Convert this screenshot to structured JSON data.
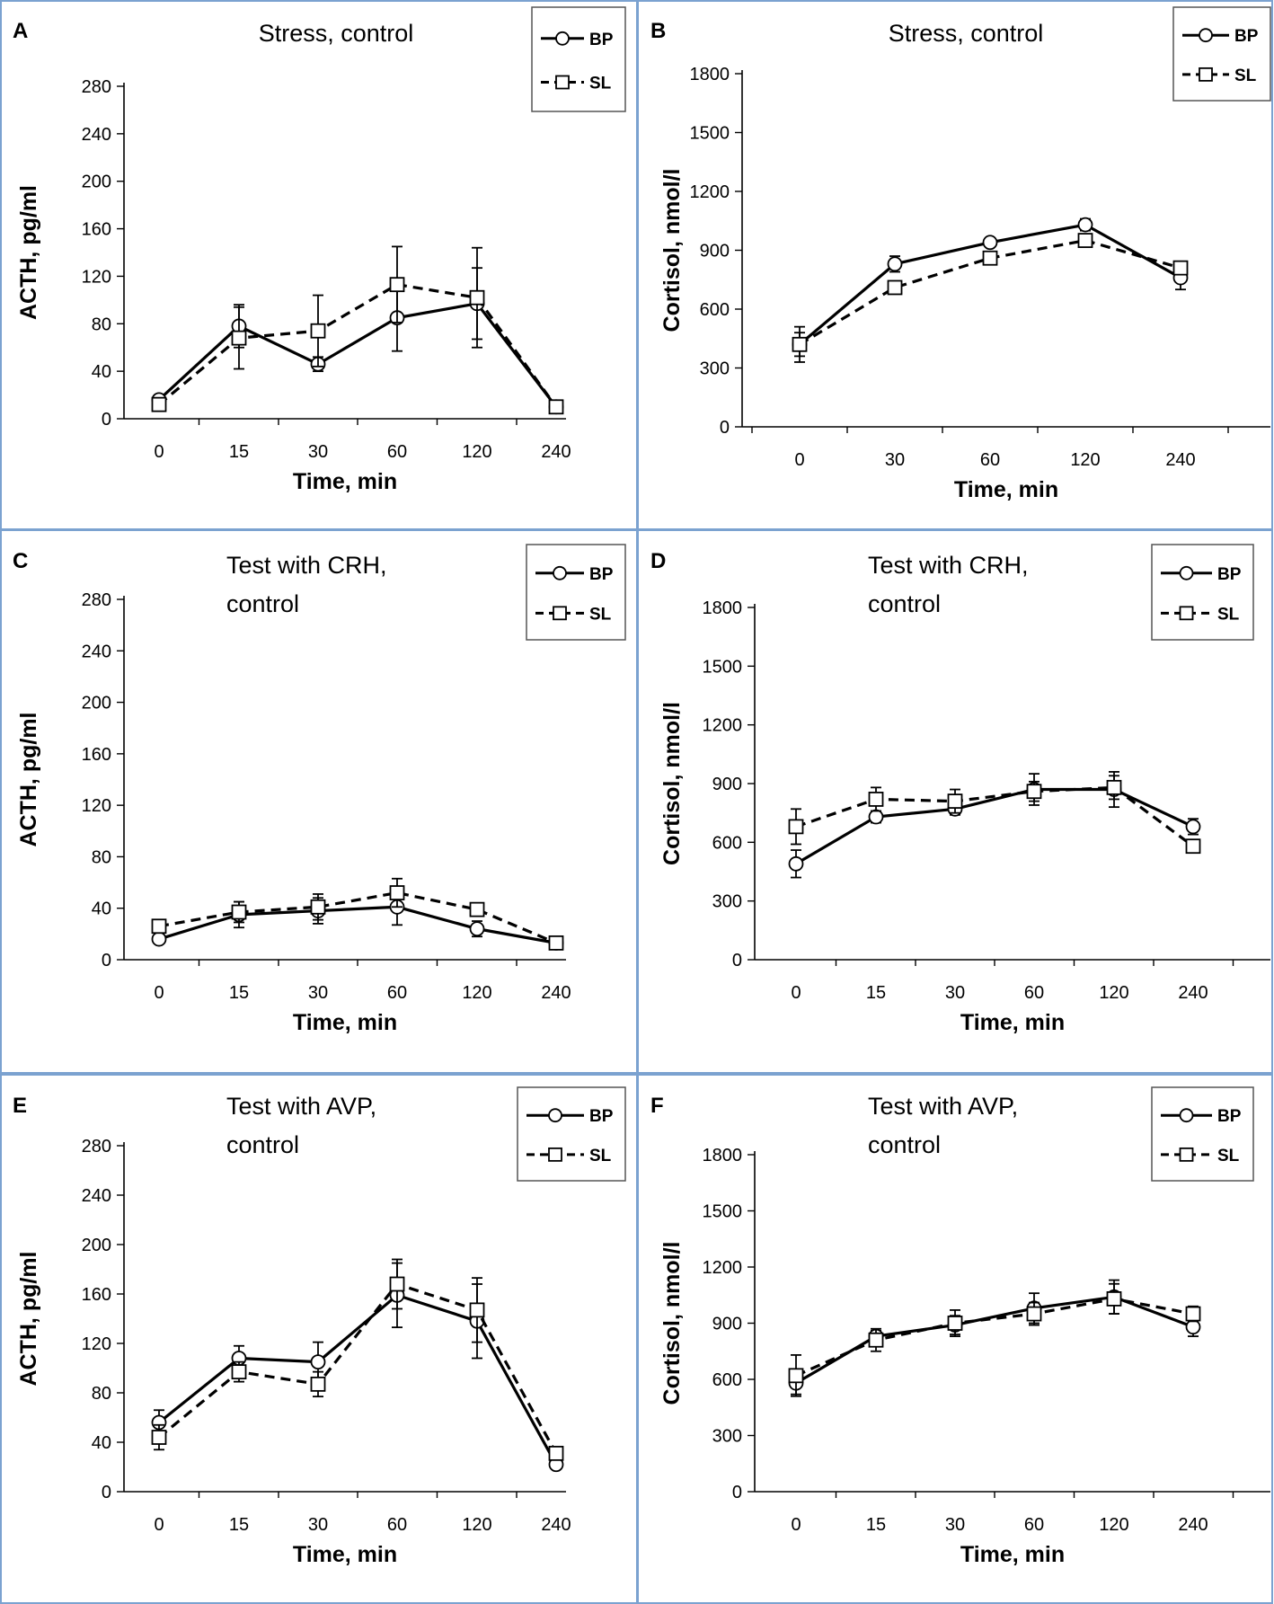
{
  "figure": {
    "border_color": "#7ba2d0",
    "line_color": "#000000"
  },
  "chart_data": [
    {
      "panel": "A",
      "type": "line",
      "title": "Stress, control",
      "xlabel": "Time, min",
      "ylabel": "ACTH, pg/ml",
      "categories": [
        "0",
        "15",
        "30",
        "60",
        "120",
        "240"
      ],
      "ylim": [
        0,
        280
      ],
      "yticks": [
        0,
        40,
        80,
        120,
        160,
        200,
        240,
        280
      ],
      "legend": "top-right",
      "series": [
        {
          "name": "BP",
          "marker": "circle",
          "dash": "solid",
          "values": [
            16,
            78,
            46,
            85,
            97,
            10
          ],
          "errors": [
            0,
            18,
            6,
            28,
            30,
            0
          ]
        },
        {
          "name": "SL",
          "marker": "square",
          "dash": "dashed",
          "values": [
            12,
            68,
            74,
            113,
            102,
            10
          ],
          "errors": [
            0,
            26,
            30,
            32,
            42,
            0
          ]
        }
      ]
    },
    {
      "panel": "B",
      "type": "line",
      "title": "Stress, control",
      "xlabel": "Time, min",
      "ylabel": "Cortisol, nmol/l",
      "categories": [
        "0",
        "30",
        "60",
        "120",
        "240"
      ],
      "ylim": [
        0,
        1800
      ],
      "yticks": [
        0,
        300,
        600,
        900,
        1200,
        1500,
        1800
      ],
      "legend": "top-right",
      "series": [
        {
          "name": "BP",
          "marker": "circle",
          "dash": "solid",
          "values": [
            420,
            830,
            940,
            1030,
            760
          ],
          "errors": [
            90,
            40,
            20,
            30,
            60
          ]
        },
        {
          "name": "SL",
          "marker": "square",
          "dash": "dashed",
          "values": [
            420,
            710,
            860,
            950,
            810
          ],
          "errors": [
            60,
            30,
            20,
            25,
            20
          ]
        }
      ]
    },
    {
      "panel": "C",
      "type": "line",
      "title": "Test with CRH, control",
      "xlabel": "Time, min",
      "ylabel": "ACTH, pg/ml",
      "categories": [
        "0",
        "15",
        "30",
        "60",
        "120",
        "240"
      ],
      "ylim": [
        0,
        280
      ],
      "yticks": [
        0,
        40,
        80,
        120,
        160,
        200,
        240,
        280
      ],
      "legend": "top-right",
      "series": [
        {
          "name": "BP",
          "marker": "circle",
          "dash": "solid",
          "values": [
            16,
            35,
            38,
            41,
            24,
            13
          ],
          "errors": [
            0,
            10,
            10,
            14,
            6,
            0
          ]
        },
        {
          "name": "SL",
          "marker": "square",
          "dash": "dashed",
          "values": [
            26,
            37,
            41,
            52,
            39,
            13
          ],
          "errors": [
            0,
            8,
            10,
            11,
            5,
            0
          ]
        }
      ]
    },
    {
      "panel": "D",
      "type": "line",
      "title": "Test with CRH, control",
      "xlabel": "Time, min",
      "ylabel": "Cortisol, nmol/l",
      "categories": [
        "0",
        "15",
        "30",
        "60",
        "120",
        "240"
      ],
      "ylim": [
        0,
        1800
      ],
      "yticks": [
        0,
        300,
        600,
        900,
        1200,
        1500,
        1800
      ],
      "legend": "top-right",
      "series": [
        {
          "name": "BP",
          "marker": "circle",
          "dash": "solid",
          "values": [
            490,
            730,
            770,
            870,
            870,
            680
          ],
          "errors": [
            70,
            30,
            30,
            80,
            90,
            40
          ]
        },
        {
          "name": "SL",
          "marker": "square",
          "dash": "dashed",
          "values": [
            680,
            820,
            810,
            860,
            880,
            580
          ],
          "errors": [
            90,
            60,
            60,
            50,
            60,
            30
          ]
        }
      ]
    },
    {
      "panel": "E",
      "type": "line",
      "title": "Test with AVP, control",
      "xlabel": "Time, min",
      "ylabel": "ACTH, pg/ml",
      "categories": [
        "0",
        "15",
        "30",
        "60",
        "120",
        "240"
      ],
      "ylim": [
        0,
        280
      ],
      "yticks": [
        0,
        40,
        80,
        120,
        160,
        200,
        240,
        280
      ],
      "legend": "top-right",
      "series": [
        {
          "name": "BP",
          "marker": "circle",
          "dash": "solid",
          "values": [
            56,
            108,
            105,
            159,
            138,
            22
          ],
          "errors": [
            10,
            10,
            16,
            26,
            30,
            0
          ]
        },
        {
          "name": "SL",
          "marker": "square",
          "dash": "dashed",
          "values": [
            44,
            97,
            87,
            168,
            147,
            31
          ],
          "errors": [
            10,
            8,
            10,
            20,
            26,
            0
          ]
        }
      ]
    },
    {
      "panel": "F",
      "type": "line",
      "title": "Test with AVP, control",
      "xlabel": "Time, min",
      "ylabel": "Cortisol, nmol/l",
      "categories": [
        "0",
        "15",
        "30",
        "60",
        "120",
        "240"
      ],
      "ylim": [
        0,
        1800
      ],
      "yticks": [
        0,
        300,
        600,
        900,
        1200,
        1500,
        1800
      ],
      "legend": "top-right",
      "series": [
        {
          "name": "BP",
          "marker": "circle",
          "dash": "solid",
          "values": [
            580,
            830,
            890,
            980,
            1040,
            880
          ],
          "errors": [
            60,
            30,
            50,
            80,
            90,
            50
          ]
        },
        {
          "name": "SL",
          "marker": "square",
          "dash": "dashed",
          "values": [
            620,
            810,
            900,
            950,
            1030,
            950
          ],
          "errors": [
            110,
            60,
            70,
            60,
            80,
            40
          ]
        }
      ]
    }
  ]
}
